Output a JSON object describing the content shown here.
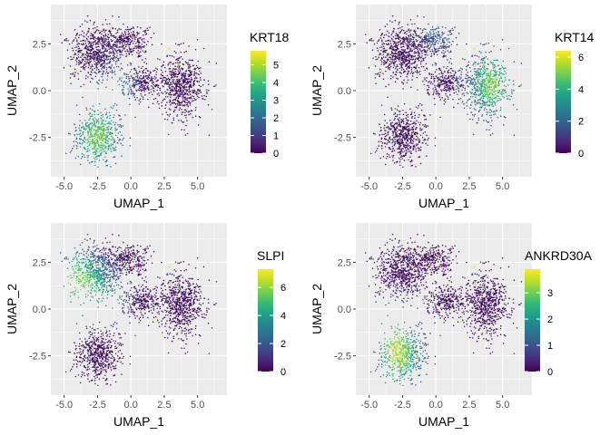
{
  "chart_data": [
    {
      "type": "scatter",
      "title": "",
      "xlabel": "UMAP_1",
      "ylabel": "UMAP_2",
      "xlim": [
        -6,
        7.2
      ],
      "ylim": [
        -4.6,
        4.6
      ],
      "x_ticks": [
        "-5.0",
        "-2.5",
        "0.0",
        "2.5",
        "5.0"
      ],
      "y_ticks": [
        "2.5",
        "0.0",
        "-2.5"
      ],
      "grid": true,
      "legend_placement": "right",
      "colorscale": "viridis",
      "series": [
        {
          "name": "KRT18"
        }
      ],
      "color_range": [
        0,
        5.8
      ],
      "color_ticks": [
        "0",
        "1",
        "2",
        "3",
        "4",
        "5"
      ],
      "high_region": [
        -2.5,
        -2.5
      ],
      "mid_region": [
        -1.0,
        0.3
      ]
    },
    {
      "type": "scatter",
      "title": "",
      "xlabel": "UMAP_1",
      "ylabel": "UMAP_2",
      "xlim": [
        -6,
        7.2
      ],
      "ylim": [
        -4.6,
        4.6
      ],
      "x_ticks": [
        "-5.0",
        "-2.5",
        "0.0",
        "2.5",
        "5.0"
      ],
      "y_ticks": [
        "2.5",
        "0.0",
        "-2.5"
      ],
      "grid": true,
      "legend_placement": "right",
      "colorscale": "viridis",
      "series": [
        {
          "name": "KRT14"
        }
      ],
      "color_range": [
        0,
        6.4
      ],
      "color_ticks": [
        "0",
        "2",
        "4",
        "6"
      ],
      "high_region": [
        4.2,
        0.3
      ],
      "mid_region": [
        0.3,
        3.2
      ]
    },
    {
      "type": "scatter",
      "title": "",
      "xlabel": "UMAP_1",
      "ylabel": "UMAP_2",
      "xlim": [
        -6,
        7.2
      ],
      "ylim": [
        -4.6,
        4.6
      ],
      "x_ticks": [
        "-5.0",
        "-2.5",
        "0.0",
        "2.5",
        "5.0"
      ],
      "y_ticks": [
        "2.5",
        "0.0",
        "-2.5"
      ],
      "grid": true,
      "legend_placement": "right",
      "colorscale": "viridis",
      "series": [
        {
          "name": "SLPI"
        }
      ],
      "color_range": [
        0,
        7.3
      ],
      "color_ticks": [
        "0",
        "2",
        "4",
        "6"
      ],
      "high_region": [
        -3.8,
        1.5
      ],
      "mid_region": [
        -1.5,
        0.5
      ]
    },
    {
      "type": "scatter",
      "title": "",
      "xlabel": "UMAP_1",
      "ylabel": "UMAP_2",
      "xlim": [
        -6,
        7.2
      ],
      "ylim": [
        -4.6,
        4.6
      ],
      "x_ticks": [
        "-5.0",
        "-2.5",
        "0.0",
        "2.5",
        "5.0"
      ],
      "y_ticks": [
        "2.5",
        "0.0",
        "-2.5"
      ],
      "grid": true,
      "legend_placement": "right",
      "colorscale": "viridis",
      "series": [
        {
          "name": "ANKRD30A"
        }
      ],
      "color_range": [
        0,
        3.9
      ],
      "color_ticks": [
        "0",
        "1",
        "2",
        "3"
      ],
      "high_region": [
        -2.8,
        -2.6
      ],
      "mid_region": [
        -3.2,
        -1.0
      ]
    }
  ],
  "colors": {
    "panel_background": "#ebebeb",
    "grid_major": "#ffffff",
    "viridis": [
      "#440154",
      "#482878",
      "#3e4989",
      "#31688e",
      "#26828e",
      "#1f9e89",
      "#35b779",
      "#6ece58",
      "#b5de2b",
      "#fde725"
    ]
  }
}
